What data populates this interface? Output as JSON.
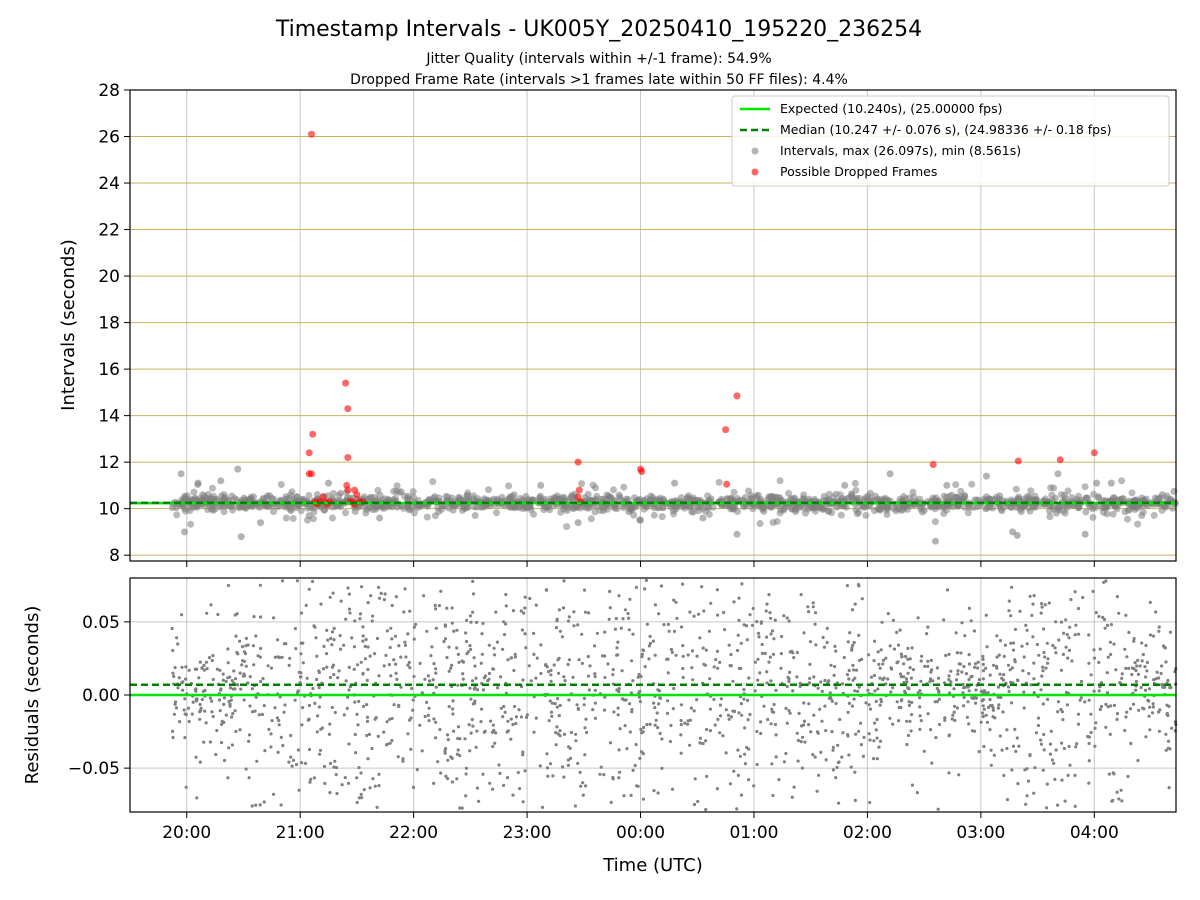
{
  "colors": {
    "expected": "#00e600",
    "median": "#008000",
    "interval_points": "#808080",
    "dropped_points": "#ff0000",
    "upper_grid": "#c8b25a",
    "lower_grid": "#b0b0b0"
  },
  "figure": {
    "title": "Timestamp Intervals - UK005Y_20250410_195220_236254",
    "subtitle_1": "Jitter Quality (intervals within +/-1 frame): 54.9%",
    "subtitle_2": "Dropped Frame Rate (intervals >1 frames late within 50 FF files): 4.4%",
    "xlabel": "Time (UTC)",
    "x_ticks": [
      "20:00",
      "21:00",
      "22:00",
      "23:00",
      "00:00",
      "01:00",
      "02:00",
      "03:00",
      "04:00"
    ]
  },
  "chart_data": [
    {
      "type": "scatter",
      "ylabel": "Intervals (seconds)",
      "ylim": [
        7.75,
        28
      ],
      "y_ticks": [
        "8",
        "10",
        "12",
        "14",
        "16",
        "18",
        "20",
        "22",
        "24",
        "26",
        "28"
      ],
      "x_range_hours": [
        19.5,
        28.72
      ],
      "x_unit": "hours since 00:00 UTC on 2025-04-10 (values above 24 fall on 2025-04-11)",
      "grid": "horizontal",
      "legend_position": "top-right",
      "legend": [
        "Expected (10.240s), (25.00000 fps)",
        "Median (10.247 +/- 0.076 s), (24.98336 +/- 0.18 fps)",
        "Intervals, max (26.097s), min (8.561s)",
        "Possible Dropped Frames"
      ],
      "expected_value": 10.24,
      "median_value": 10.247,
      "data_span_hours": [
        19.87,
        28.72
      ],
      "dropped_frames": [
        {
          "x": 21.1,
          "y": 26.1
        },
        {
          "x": 21.08,
          "y": 12.4
        },
        {
          "x": 21.11,
          "y": 13.2
        },
        {
          "x": 21.08,
          "y": 11.5
        },
        {
          "x": 21.1,
          "y": 11.5
        },
        {
          "x": 21.4,
          "y": 15.4
        },
        {
          "x": 21.42,
          "y": 14.3
        },
        {
          "x": 21.42,
          "y": 12.2
        },
        {
          "x": 21.41,
          "y": 11.0
        },
        {
          "x": 21.42,
          "y": 10.8
        },
        {
          "x": 21.48,
          "y": 10.8
        },
        {
          "x": 21.5,
          "y": 10.6
        },
        {
          "x": 21.2,
          "y": 10.5
        },
        {
          "x": 21.13,
          "y": 10.3
        },
        {
          "x": 21.17,
          "y": 10.3
        },
        {
          "x": 21.22,
          "y": 10.3
        },
        {
          "x": 21.26,
          "y": 10.3
        },
        {
          "x": 21.15,
          "y": 10.2
        },
        {
          "x": 21.24,
          "y": 10.2
        },
        {
          "x": 21.44,
          "y": 10.3
        },
        {
          "x": 21.46,
          "y": 10.3
        },
        {
          "x": 21.52,
          "y": 10.3
        },
        {
          "x": 21.55,
          "y": 10.3
        },
        {
          "x": 21.48,
          "y": 10.2
        },
        {
          "x": 23.45,
          "y": 12.0
        },
        {
          "x": 23.46,
          "y": 10.8
        },
        {
          "x": 23.45,
          "y": 10.5
        },
        {
          "x": 23.47,
          "y": 10.3
        },
        {
          "x": 24.0,
          "y": 11.7
        },
        {
          "x": 24.01,
          "y": 11.6
        },
        {
          "x": 24.75,
          "y": 13.4
        },
        {
          "x": 24.85,
          "y": 14.85
        },
        {
          "x": 24.76,
          "y": 11.05
        },
        {
          "x": 26.58,
          "y": 11.9
        },
        {
          "x": 27.33,
          "y": 12.05
        },
        {
          "x": 27.7,
          "y": 12.1
        },
        {
          "x": 28.0,
          "y": 12.4
        }
      ],
      "interval_outliers": [
        {
          "x": 19.95,
          "y": 11.5
        },
        {
          "x": 19.98,
          "y": 9.0
        },
        {
          "x": 20.1,
          "y": 11.1
        },
        {
          "x": 20.3,
          "y": 11.2
        },
        {
          "x": 20.45,
          "y": 11.7
        },
        {
          "x": 20.48,
          "y": 8.8
        },
        {
          "x": 20.65,
          "y": 9.4
        },
        {
          "x": 21.08,
          "y": 9.7
        },
        {
          "x": 21.25,
          "y": 11.1
        },
        {
          "x": 21.7,
          "y": 9.6
        },
        {
          "x": 23.12,
          "y": 11.0
        },
        {
          "x": 23.45,
          "y": 9.4
        },
        {
          "x": 24.0,
          "y": 9.5
        },
        {
          "x": 24.3,
          "y": 11.1
        },
        {
          "x": 24.55,
          "y": 9.6
        },
        {
          "x": 24.85,
          "y": 8.9
        },
        {
          "x": 25.8,
          "y": 11.0
        },
        {
          "x": 26.2,
          "y": 11.5
        },
        {
          "x": 26.6,
          "y": 8.6
        },
        {
          "x": 26.7,
          "y": 11.0
        },
        {
          "x": 27.05,
          "y": 11.4
        },
        {
          "x": 27.28,
          "y": 9.0
        },
        {
          "x": 27.32,
          "y": 8.85
        },
        {
          "x": 27.68,
          "y": 11.5
        },
        {
          "x": 27.92,
          "y": 8.9
        },
        {
          "x": 28.02,
          "y": 11.1
        },
        {
          "x": 28.15,
          "y": 11.1
        },
        {
          "x": 28.6,
          "y": 10.6
        }
      ]
    },
    {
      "type": "scatter",
      "ylabel": "Residuals (seconds)",
      "ylim": [
        -0.08,
        0.08
      ],
      "y_ticks": [
        "−0.05",
        "0.00",
        "0.05"
      ],
      "y_tick_values": [
        -0.05,
        0,
        0.05
      ],
      "x_range_hours": [
        19.5,
        28.72
      ],
      "grid": "both",
      "expected_value": 0.0,
      "median_value": 0.007,
      "data_span_hours": [
        19.87,
        28.72
      ],
      "point_count_approx": 2000
    }
  ]
}
